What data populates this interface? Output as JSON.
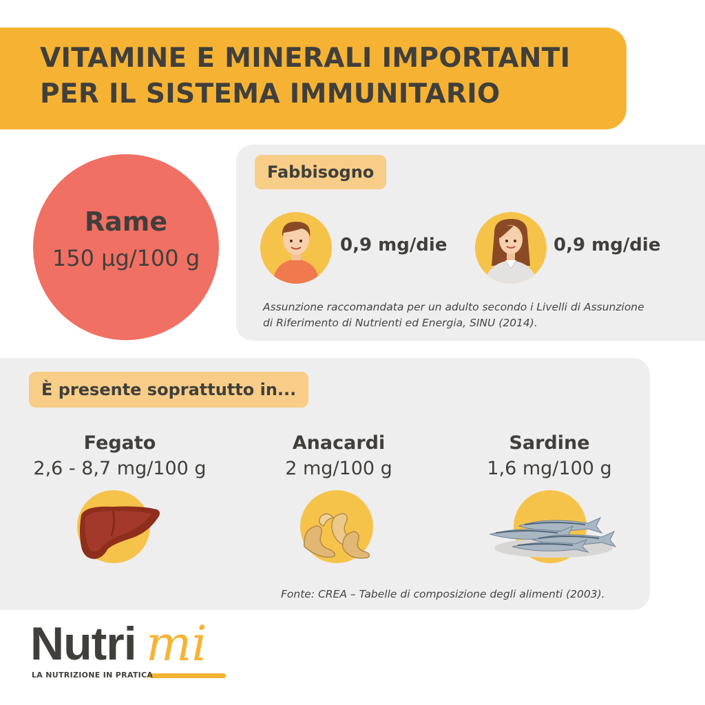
{
  "title": {
    "line1": "VITAMINE E MINERALI IMPORTANTI",
    "line2": "PER IL SISTEMA IMMUNITARIO"
  },
  "nutrient": {
    "name": "Rame",
    "value": "150 µg/100 g"
  },
  "requirement": {
    "heading": "Fabbisogno",
    "man": "0,9 mg/die",
    "woman": "0,9 mg/die",
    "note": "Assunzione raccomandata per un adulto secondo i Livelli di Assunzione di Riferimento di Nutrienti ed Energia, SINU (2014)."
  },
  "sources": {
    "heading": "È presente soprattutto in...",
    "items": [
      {
        "name": "Fegato",
        "value": "2,6 - 8,7 mg/100 g",
        "icon": "liver-icon"
      },
      {
        "name": "Anacardi",
        "value": "2 mg/100 g",
        "icon": "cashew-icon"
      },
      {
        "name": "Sardine",
        "value": "1,6 mg/100 g",
        "icon": "sardine-icon"
      }
    ],
    "source_note": "Fonte: CREA – Tabelle di composizione degli alimenti (2003)."
  },
  "logo": {
    "brand_main": "Nutri",
    "brand_accent": "mi",
    "tagline": "LA NUTRIZIONE IN PRATICA"
  },
  "colors": {
    "accent": "#f6b333",
    "circle": "#f07063",
    "panel": "#efeeee",
    "tag": "#f7cd87",
    "text": "#403f3c"
  }
}
